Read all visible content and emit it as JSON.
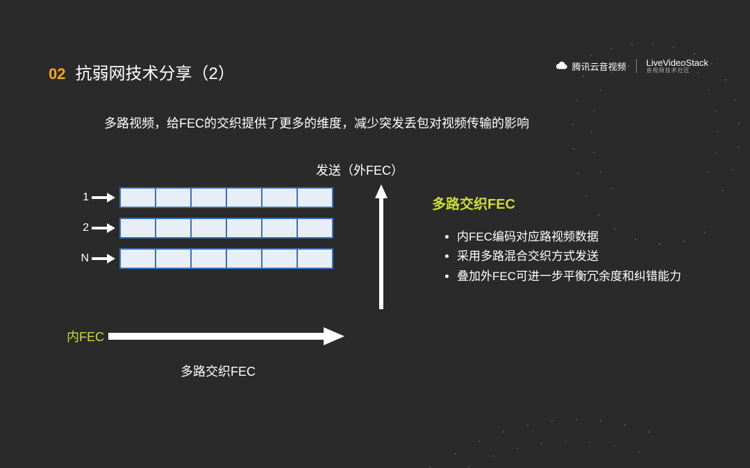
{
  "header": {
    "number": "02",
    "title": "抗弱网技术分享（2）",
    "logo_a": "腾讯云音视频",
    "logo_b_main": "LiveVideoStack",
    "logo_b_sub": "音视频技术社区"
  },
  "subtitle": "多路视频，给FEC的交织提供了更多的维度，减少突发丢包对视频传输的影响",
  "diagram": {
    "send_label": "发送（外FEC）",
    "rows": [
      {
        "label": "1",
        "cells": 6
      },
      {
        "label": "2",
        "cells": 6
      },
      {
        "label": "N",
        "cells": 6
      }
    ],
    "cell_fill": "#e8eef6",
    "cell_border": "#3a6fb5",
    "inner_fec_label": "内FEC",
    "bottom_label": "多路交织FEC",
    "arrow_color": "#ffffff",
    "accent_color": "#cddc39"
  },
  "right": {
    "title": "多路交织FEC",
    "bullets": [
      "内FEC编码对应路视频数据",
      "采用多路混合交织方式发送",
      "叠加外FEC可进一步平衡冗余度和纠错能力"
    ]
  },
  "style": {
    "background": "#2a2a2a",
    "title_num_color": "#f5a623",
    "text_color": "#ffffff",
    "accent": "#cddc39"
  }
}
